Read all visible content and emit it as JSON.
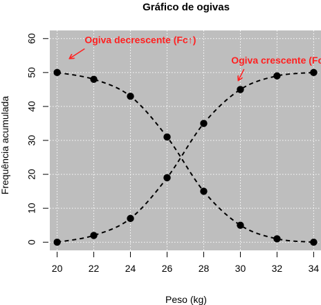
{
  "chart_data": {
    "type": "line",
    "title": "Gráfico de ogivas",
    "xlabel": "Peso (kg)",
    "ylabel": "Frequência acumulada",
    "x": [
      20,
      22,
      24,
      26,
      28,
      30,
      32,
      34
    ],
    "xticks": [
      20,
      22,
      24,
      26,
      28,
      30,
      32,
      34
    ],
    "yticks": [
      0,
      10,
      20,
      30,
      40,
      50,
      60
    ],
    "xlim": [
      19.6,
      34.4
    ],
    "ylim": [
      -2.4,
      62.4
    ],
    "grid": true,
    "series": [
      {
        "name": "Ogiva crescente (Fc↓)",
        "values": [
          0,
          2,
          7,
          19,
          35,
          45,
          49,
          50
        ]
      },
      {
        "name": "Ogiva decrescente (Fc↑)",
        "values": [
          50,
          48,
          43,
          31,
          15,
          5,
          1,
          0
        ]
      }
    ],
    "annotations": [
      {
        "text": "Ogiva decrescente (Fc↑)",
        "x": 21.5,
        "y": 58.6,
        "arrow_from": [
          21.5,
          57.0
        ],
        "arrow_to": [
          20.7,
          54.2
        ]
      },
      {
        "text": "Ogiva crescente (Fc↓)",
        "x": 29.5,
        "y": 52.6,
        "arrow_from": [
          30.2,
          51.0
        ],
        "arrow_to": [
          29.9,
          47.8
        ]
      }
    ]
  },
  "colors": {
    "plot_background": "#bebebe",
    "grid": "#ffffff",
    "line": "#000000",
    "point": "#000000",
    "annotation": "#ff2020"
  }
}
